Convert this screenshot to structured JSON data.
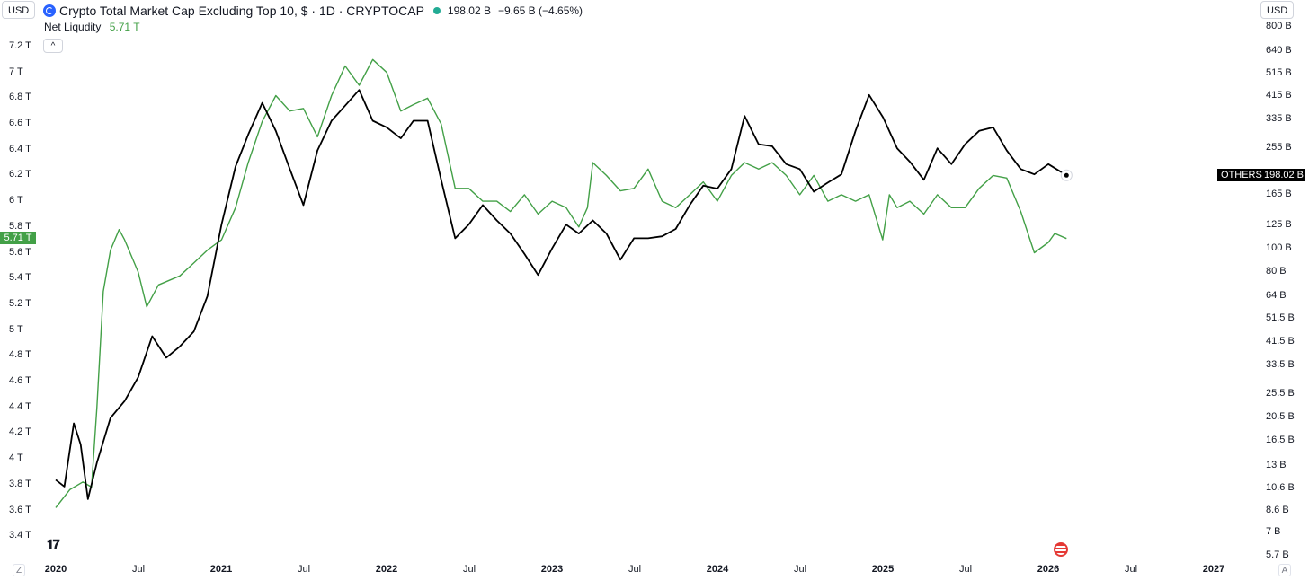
{
  "header": {
    "usd_left": "USD",
    "usd_right": "USD",
    "title": "Crypto Total Market Cap Excluding Top 10, $ · 1D · CRYPTOCAP",
    "value": "198.02 B",
    "change": "−9.65 B (−4.65%)",
    "indicator_name": "Net Liqudity",
    "indicator_value": "5.71 T"
  },
  "badges": {
    "left_value": "5.71 T",
    "symbol": "OTHERS",
    "price": "198.02 B"
  },
  "colors": {
    "price_line": "#000000",
    "liquidity_line": "#43a047",
    "live_dot": "#22ab94"
  },
  "icons": {
    "logo": "tradingview-logo-icon",
    "flag": "us-flag-icon",
    "collapse": "chevron-up-icon"
  },
  "chart_data": {
    "type": "line",
    "x_ticks": [
      "2020",
      "Jul",
      "2021",
      "Jul",
      "2022",
      "Jul",
      "2023",
      "Jul",
      "2024",
      "Jul",
      "2025",
      "Jul",
      "2026",
      "Jul",
      "2027"
    ],
    "left_axis_ticks": [
      "7.2 T",
      "7 T",
      "6.8 T",
      "6.6 T",
      "6.4 T",
      "6.2 T",
      "6 T",
      "5.8 T",
      "5.6 T",
      "5.4 T",
      "5.2 T",
      "5 T",
      "4.8 T",
      "4.6 T",
      "4.4 T",
      "4.2 T",
      "4 T",
      "3.8 T",
      "3.6 T",
      "3.4 T"
    ],
    "right_axis_ticks": [
      "800 B",
      "640 B",
      "515 B",
      "415 B",
      "335 B",
      "255 B",
      "165 B",
      "125 B",
      "100 B",
      "80 B",
      "64 B",
      "51.5 B",
      "41.5 B",
      "33.5 B",
      "25.5 B",
      "20.5 B",
      "16.5 B",
      "13 B",
      "10.6 B",
      "8.6 B",
      "7 B",
      "5.7 B"
    ],
    "right_axis_scale": "log",
    "left_range_T": [
      3.35,
      7.35
    ],
    "right_range_B": [
      5.3,
      900
    ],
    "series": [
      {
        "name": "Net Liqudity",
        "axis": "left",
        "color": "#43a047",
        "points": [
          [
            "2020-01-01",
            3.62
          ],
          [
            "2020-02-01",
            3.76
          ],
          [
            "2020-03-01",
            3.82
          ],
          [
            "2020-03-20",
            3.78
          ],
          [
            "2020-04-01",
            4.4
          ],
          [
            "2020-04-15",
            5.3
          ],
          [
            "2020-05-01",
            5.62
          ],
          [
            "2020-05-20",
            5.78
          ],
          [
            "2020-06-01",
            5.7
          ],
          [
            "2020-07-01",
            5.45
          ],
          [
            "2020-07-20",
            5.18
          ],
          [
            "2020-08-15",
            5.35
          ],
          [
            "2020-10-01",
            5.42
          ],
          [
            "2020-11-01",
            5.52
          ],
          [
            "2020-12-01",
            5.62
          ],
          [
            "2021-01-01",
            5.7
          ],
          [
            "2021-02-01",
            5.95
          ],
          [
            "2021-03-01",
            6.3
          ],
          [
            "2021-04-01",
            6.62
          ],
          [
            "2021-05-01",
            6.82
          ],
          [
            "2021-06-01",
            6.7
          ],
          [
            "2021-07-01",
            6.72
          ],
          [
            "2021-08-01",
            6.5
          ],
          [
            "2021-09-01",
            6.82
          ],
          [
            "2021-10-01",
            7.05
          ],
          [
            "2021-11-01",
            6.9
          ],
          [
            "2021-12-01",
            7.1
          ],
          [
            "2022-01-01",
            7.0
          ],
          [
            "2022-02-01",
            6.7
          ],
          [
            "2022-03-01",
            6.75
          ],
          [
            "2022-04-01",
            6.8
          ],
          [
            "2022-05-01",
            6.6
          ],
          [
            "2022-06-01",
            6.1
          ],
          [
            "2022-07-01",
            6.1
          ],
          [
            "2022-08-01",
            6.0
          ],
          [
            "2022-09-01",
            6.0
          ],
          [
            "2022-10-01",
            5.92
          ],
          [
            "2022-11-01",
            6.05
          ],
          [
            "2022-12-01",
            5.9
          ],
          [
            "2023-01-01",
            6.0
          ],
          [
            "2023-02-01",
            5.95
          ],
          [
            "2023-03-01",
            5.8
          ],
          [
            "2023-03-20",
            5.95
          ],
          [
            "2023-04-01",
            6.3
          ],
          [
            "2023-05-01",
            6.2
          ],
          [
            "2023-06-01",
            6.08
          ],
          [
            "2023-07-01",
            6.1
          ],
          [
            "2023-08-01",
            6.25
          ],
          [
            "2023-09-01",
            6.0
          ],
          [
            "2023-10-01",
            5.95
          ],
          [
            "2023-11-01",
            6.05
          ],
          [
            "2023-12-01",
            6.15
          ],
          [
            "2024-01-01",
            6.0
          ],
          [
            "2024-02-01",
            6.2
          ],
          [
            "2024-03-01",
            6.3
          ],
          [
            "2024-04-01",
            6.25
          ],
          [
            "2024-05-01",
            6.3
          ],
          [
            "2024-06-01",
            6.2
          ],
          [
            "2024-07-01",
            6.05
          ],
          [
            "2024-08-01",
            6.2
          ],
          [
            "2024-09-01",
            6.0
          ],
          [
            "2024-10-01",
            6.05
          ],
          [
            "2024-11-01",
            6.0
          ],
          [
            "2024-12-01",
            6.05
          ],
          [
            "2024-12-31",
            5.7
          ],
          [
            "2025-01-15",
            6.05
          ],
          [
            "2025-02-01",
            5.95
          ],
          [
            "2025-03-01",
            6.0
          ],
          [
            "2025-04-01",
            5.9
          ],
          [
            "2025-05-01",
            6.05
          ],
          [
            "2025-06-01",
            5.95
          ],
          [
            "2025-07-01",
            5.95
          ],
          [
            "2025-08-01",
            6.1
          ],
          [
            "2025-09-01",
            6.2
          ],
          [
            "2025-10-01",
            6.18
          ],
          [
            "2025-11-01",
            5.92
          ],
          [
            "2025-12-01",
            5.6
          ],
          [
            "2026-01-01",
            5.68
          ],
          [
            "2026-01-15",
            5.75
          ],
          [
            "2026-02-10",
            5.71
          ]
        ]
      },
      {
        "name": "OTHERS",
        "axis": "right",
        "color": "#000000",
        "points": [
          [
            "2020-01-01",
            11.5
          ],
          [
            "2020-01-20",
            10.8
          ],
          [
            "2020-02-10",
            19.5
          ],
          [
            "2020-02-25",
            16.0
          ],
          [
            "2020-03-12",
            9.6
          ],
          [
            "2020-04-01",
            13.5
          ],
          [
            "2020-05-01",
            20.5
          ],
          [
            "2020-06-01",
            24.0
          ],
          [
            "2020-07-01",
            30.0
          ],
          [
            "2020-08-01",
            44.0
          ],
          [
            "2020-09-01",
            36.0
          ],
          [
            "2020-10-01",
            40.0
          ],
          [
            "2020-11-01",
            46.0
          ],
          [
            "2020-12-01",
            64.0
          ],
          [
            "2021-01-01",
            125.0
          ],
          [
            "2021-02-01",
            215.0
          ],
          [
            "2021-03-01",
            290.0
          ],
          [
            "2021-04-01",
            390.0
          ],
          [
            "2021-05-01",
            300.0
          ],
          [
            "2021-06-01",
            210.0
          ],
          [
            "2021-07-01",
            150.0
          ],
          [
            "2021-08-01",
            250.0
          ],
          [
            "2021-09-01",
            330.0
          ],
          [
            "2021-10-01",
            380.0
          ],
          [
            "2021-11-01",
            440.0
          ],
          [
            "2021-12-01",
            330.0
          ],
          [
            "2022-01-01",
            310.0
          ],
          [
            "2022-02-01",
            280.0
          ],
          [
            "2022-03-01",
            330.0
          ],
          [
            "2022-04-01",
            330.0
          ],
          [
            "2022-05-01",
            190.0
          ],
          [
            "2022-06-01",
            110.0
          ],
          [
            "2022-07-01",
            125.0
          ],
          [
            "2022-08-01",
            150.0
          ],
          [
            "2022-09-01",
            130.0
          ],
          [
            "2022-10-01",
            115.0
          ],
          [
            "2022-11-01",
            95.0
          ],
          [
            "2022-12-01",
            78.0
          ],
          [
            "2023-01-01",
            100.0
          ],
          [
            "2023-02-01",
            125.0
          ],
          [
            "2023-03-01",
            115.0
          ],
          [
            "2023-04-01",
            130.0
          ],
          [
            "2023-05-01",
            115.0
          ],
          [
            "2023-06-01",
            90.0
          ],
          [
            "2023-07-01",
            110.0
          ],
          [
            "2023-08-01",
            110.0
          ],
          [
            "2023-09-01",
            112.0
          ],
          [
            "2023-10-01",
            120.0
          ],
          [
            "2023-11-01",
            150.0
          ],
          [
            "2023-12-01",
            180.0
          ],
          [
            "2024-01-01",
            175.0
          ],
          [
            "2024-02-01",
            210.0
          ],
          [
            "2024-03-01",
            345.0
          ],
          [
            "2024-04-01",
            265.0
          ],
          [
            "2024-05-01",
            260.0
          ],
          [
            "2024-06-01",
            220.0
          ],
          [
            "2024-07-01",
            210.0
          ],
          [
            "2024-08-01",
            170.0
          ],
          [
            "2024-09-01",
            185.0
          ],
          [
            "2024-10-01",
            200.0
          ],
          [
            "2024-11-01",
            300.0
          ],
          [
            "2024-12-01",
            420.0
          ],
          [
            "2025-01-01",
            340.0
          ],
          [
            "2025-02-01",
            255.0
          ],
          [
            "2025-03-01",
            225.0
          ],
          [
            "2025-04-01",
            190.0
          ],
          [
            "2025-05-01",
            255.0
          ],
          [
            "2025-06-01",
            220.0
          ],
          [
            "2025-07-01",
            265.0
          ],
          [
            "2025-08-01",
            300.0
          ],
          [
            "2025-09-01",
            310.0
          ],
          [
            "2025-10-01",
            250.0
          ],
          [
            "2025-11-01",
            210.0
          ],
          [
            "2025-12-01",
            200.0
          ],
          [
            "2026-01-01",
            220.0
          ],
          [
            "2026-02-10",
            198.0
          ]
        ]
      }
    ]
  }
}
